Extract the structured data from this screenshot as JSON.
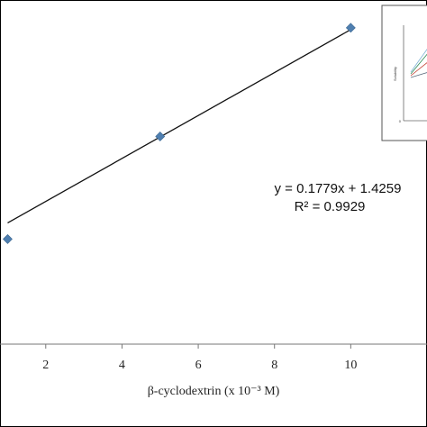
{
  "chart_data": {
    "type": "scatter",
    "title": "",
    "xlabel": "β-cyclodextrin (x 10⁻³ M)",
    "ylabel": "",
    "xlim": [
      0.8,
      12
    ],
    "ylim": [
      0.6,
      3.45
    ],
    "x_ticks": [
      2,
      4,
      6,
      8,
      10
    ],
    "x_tick_labels": [
      "2",
      "4",
      "6",
      "8",
      "10"
    ],
    "grid": false,
    "series": [
      {
        "points": [
          {
            "x": 1,
            "y": 1.47
          },
          {
            "x": 5,
            "y": 2.32
          },
          {
            "x": 10,
            "y": 3.22
          }
        ],
        "marker_color": "#4f7fb0"
      }
    ],
    "trendline": {
      "slope": 0.1779,
      "intercept": 1.4259,
      "x_range": [
        1,
        10
      ],
      "color": "#111111"
    },
    "annotations": {
      "equation": "y = 0.1779x + 1.4259",
      "r_squared": "R² = 0.9929"
    },
    "inset": {
      "ylabel": "Solubility",
      "tick_label": "0"
    }
  }
}
